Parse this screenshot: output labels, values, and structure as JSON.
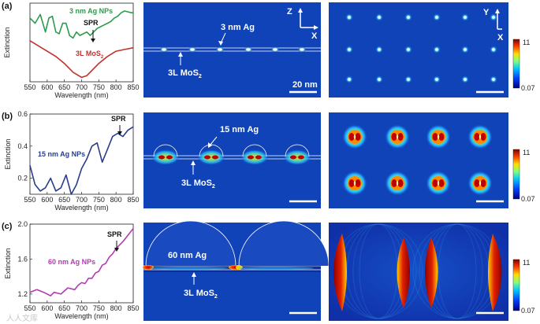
{
  "panels": [
    {
      "label": "(a)",
      "sim_labels": {
        "particle": "3 nm Ag",
        "substrate": "3L MoS",
        "substrate_sub": "2",
        "scalebar": "20 nm"
      },
      "axes_xz": {
        "z": "Z",
        "x": "X"
      },
      "axes_xy": {
        "y": "Y",
        "x": "X"
      }
    },
    {
      "label": "(b)",
      "sim_labels": {
        "particle": "15 nm Ag",
        "substrate": "3L MoS",
        "substrate_sub": "2"
      }
    },
    {
      "label": "(c)",
      "sim_labels": {
        "particle": "60 nm Ag",
        "substrate": "3L MoS",
        "substrate_sub": "2"
      }
    }
  ],
  "colorbar": {
    "max": "11",
    "min": "0.07"
  },
  "watermark": "人人文库",
  "chart_data": [
    {
      "type": "line",
      "xlabel": "Wavelength (nm)",
      "ylabel": "Extinction",
      "xlim": [
        550,
        850
      ],
      "xticks": [
        "550",
        "600",
        "650",
        "700",
        "750",
        "800",
        "850"
      ],
      "yticks": [],
      "annotation": "SPR",
      "series": [
        {
          "name": "3 nm Ag NPs",
          "color": "#2e9a4e",
          "x": [
            550,
            565,
            580,
            595,
            605,
            615,
            625,
            635,
            645,
            655,
            665,
            675,
            685,
            695,
            705,
            715,
            725,
            735,
            745,
            755,
            765,
            775,
            785,
            795,
            805,
            815,
            825,
            835,
            845,
            850
          ],
          "y": [
            0.78,
            0.72,
            0.82,
            0.62,
            0.78,
            0.8,
            0.62,
            0.6,
            0.72,
            0.72,
            0.58,
            0.55,
            0.62,
            0.58,
            0.6,
            0.62,
            0.58,
            0.62,
            0.66,
            0.68,
            0.7,
            0.72,
            0.74,
            0.78,
            0.8,
            0.84,
            0.86,
            0.85,
            0.84,
            0.84
          ]
        },
        {
          "name": "3L MoS2",
          "color": "#c2312a",
          "x": [
            550,
            575,
            600,
            625,
            650,
            675,
            700,
            715,
            730,
            750,
            775,
            800,
            825,
            850
          ],
          "y": [
            0.52,
            0.46,
            0.4,
            0.34,
            0.26,
            0.16,
            0.1,
            0.12,
            0.18,
            0.26,
            0.34,
            0.4,
            0.42,
            0.44
          ]
        }
      ]
    },
    {
      "type": "line",
      "xlabel": "Wavelength (nm)",
      "ylabel": "Extinction",
      "xlim": [
        550,
        850
      ],
      "ylim": [
        0.1,
        0.6
      ],
      "xticks": [
        "550",
        "600",
        "650",
        "700",
        "750",
        "800",
        "850"
      ],
      "yticks": [
        "0.2",
        "0.4",
        "0.6"
      ],
      "annotation": "SPR",
      "series": [
        {
          "name": "15 nm Ag NPs",
          "color": "#2a3d8c",
          "x": [
            550,
            565,
            580,
            595,
            610,
            625,
            640,
            655,
            670,
            685,
            700,
            715,
            730,
            745,
            760,
            775,
            790,
            805,
            820,
            835,
            850
          ],
          "y": [
            0.28,
            0.16,
            0.12,
            0.14,
            0.2,
            0.12,
            0.14,
            0.22,
            0.1,
            0.16,
            0.26,
            0.32,
            0.4,
            0.42,
            0.3,
            0.38,
            0.46,
            0.48,
            0.46,
            0.5,
            0.52
          ]
        }
      ]
    },
    {
      "type": "line",
      "xlabel": "Wavelength (nm)",
      "ylabel": "Extinction",
      "xlim": [
        550,
        850
      ],
      "ylim": [
        1.1,
        2.0
      ],
      "xticks": [
        "550",
        "600",
        "650",
        "700",
        "750",
        "800",
        "850"
      ],
      "yticks": [
        "1.2",
        "1.6",
        "2.0"
      ],
      "annotation": "SPR",
      "series": [
        {
          "name": "60 nm Ag NPs",
          "color": "#b43bb0",
          "x": [
            550,
            570,
            590,
            610,
            620,
            640,
            660,
            680,
            690,
            700,
            710,
            720,
            730,
            740,
            750,
            760,
            770,
            780,
            790,
            800,
            820,
            850
          ],
          "y": [
            1.22,
            1.25,
            1.22,
            1.18,
            1.22,
            1.2,
            1.27,
            1.25,
            1.3,
            1.33,
            1.32,
            1.38,
            1.38,
            1.44,
            1.46,
            1.53,
            1.55,
            1.62,
            1.66,
            1.72,
            1.8,
            1.95
          ]
        }
      ]
    }
  ]
}
